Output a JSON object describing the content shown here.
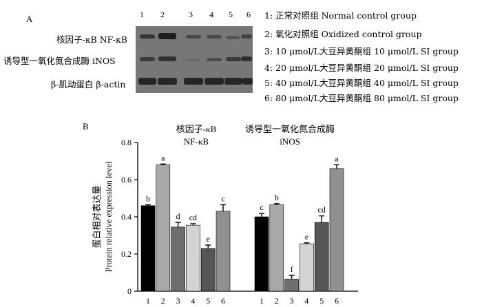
{
  "panel_a": {
    "letter": "A",
    "lanes": [
      "1",
      "2",
      "3",
      "4",
      "5",
      "6"
    ],
    "blot_labels": {
      "nfkb": "核因子-κB NF-κB",
      "inos": "诱导型一氧化氮合成酶 iNOS",
      "actin": "β-肌动蛋白 β-actin"
    },
    "legend": [
      "1: 正常对照组  Normal control group",
      "2: 氧化对照组  Oxidized control group",
      "3: 10 μmol/L大豆异黄酮组  10 μmol/L SI group",
      "4: 20 μmol/L大豆异黄酮组  20 μmol/L SI group",
      "5: 40 μmol/L大豆异黄酮组  40 μmol/L SI group",
      "6: 80 μmol/L大豆异黄酮组  80 μmol/L SI group"
    ]
  },
  "panel_b": {
    "letter": "B"
  },
  "chart_data": {
    "type": "bar",
    "ylabel_cn": "蛋白相对表达量",
    "ylabel_en": "Protein relative expression level",
    "ylim": [
      0,
      0.8
    ],
    "yticks": [
      "0",
      "0.2",
      "0.4",
      "0.6",
      "0.8"
    ],
    "categories": [
      "1",
      "2",
      "3",
      "4",
      "5",
      "6"
    ],
    "colors": [
      "#000000",
      "#a8a8a8",
      "#6e6e6e",
      "#d4d4d4",
      "#555555",
      "#909090"
    ],
    "groups": [
      {
        "title_cn": "核因子-κB",
        "title_en": "NF-κB",
        "values": [
          0.46,
          0.68,
          0.345,
          0.355,
          0.23,
          0.43
        ],
        "errors": [
          0.005,
          0.004,
          0.025,
          0.008,
          0.018,
          0.035
        ],
        "letters": [
          "b",
          "a",
          "d",
          "cd",
          "e",
          "c"
        ]
      },
      {
        "title_cn": "诱导型一氧化氮合成酶",
        "title_en": "iNOS",
        "values": [
          0.4,
          0.465,
          0.065,
          0.255,
          0.37,
          0.66
        ],
        "errors": [
          0.018,
          0.006,
          0.02,
          0.005,
          0.035,
          0.02
        ],
        "letters": [
          "c",
          "b",
          "f",
          "e",
          "cd",
          "a"
        ]
      }
    ]
  }
}
